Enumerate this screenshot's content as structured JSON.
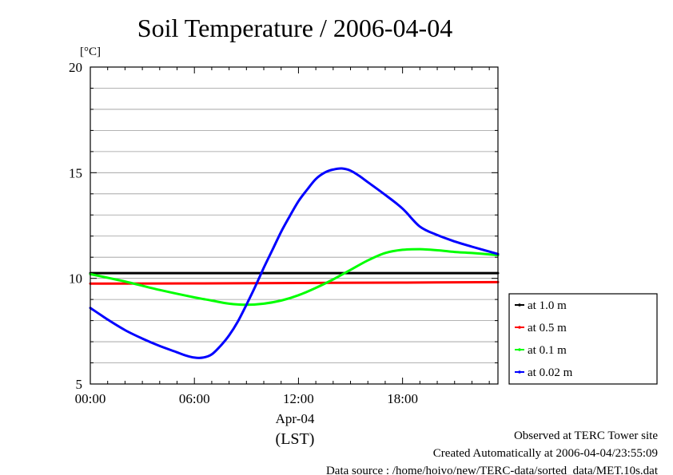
{
  "chart_data": {
    "type": "line",
    "title": "Soil Temperature / 2006-04-04",
    "ylabel": "[°C]",
    "xlabel_lines": [
      "Apr-04",
      "(LST)"
    ],
    "xlim": [
      0,
      23.5
    ],
    "ylim": [
      5,
      20
    ],
    "x_ticks": [
      0,
      6,
      12,
      18
    ],
    "x_tick_labels": [
      "00:00",
      "06:00",
      "12:00",
      "18:00"
    ],
    "y_ticks": [
      5,
      10,
      15,
      20
    ],
    "y_tick_labels": [
      "5",
      "10",
      "15",
      "20"
    ],
    "grid": true,
    "legend_position": "right",
    "series": [
      {
        "name": "at 1.0 m",
        "color": "#000000",
        "x": [
          0,
          23.5
        ],
        "y": [
          10.25,
          10.25
        ]
      },
      {
        "name": "at 0.5 m",
        "color": "#ff0000",
        "x": [
          0,
          6,
          12,
          18,
          23.5
        ],
        "y": [
          9.75,
          9.76,
          9.78,
          9.8,
          9.82
        ]
      },
      {
        "name": "at 0.1 m",
        "color": "#00ff00",
        "x": [
          0,
          2,
          4,
          6,
          7,
          8,
          9,
          10,
          11,
          12,
          13,
          14,
          15,
          16,
          17,
          18,
          19,
          20,
          21,
          22,
          23.5
        ],
        "y": [
          10.2,
          9.85,
          9.45,
          9.1,
          8.95,
          8.8,
          8.75,
          8.8,
          8.95,
          9.2,
          9.55,
          9.95,
          10.4,
          10.85,
          11.2,
          11.35,
          11.38,
          11.33,
          11.25,
          11.2,
          11.1
        ]
      },
      {
        "name": "at 0.02 m",
        "color": "#0000ff",
        "x": [
          0,
          1,
          2,
          3,
          4,
          5,
          5.5,
          6,
          6.5,
          7,
          7.5,
          8,
          8.5,
          9,
          9.5,
          10,
          10.5,
          11,
          11.5,
          12,
          12.5,
          13,
          13.5,
          14,
          14.5,
          15,
          15.5,
          16,
          17,
          18,
          19,
          20,
          21,
          22,
          23.5
        ],
        "y": [
          8.6,
          8.05,
          7.55,
          7.15,
          6.8,
          6.5,
          6.35,
          6.25,
          6.25,
          6.4,
          6.8,
          7.3,
          7.95,
          8.75,
          9.6,
          10.5,
          11.35,
          12.2,
          12.95,
          13.65,
          14.2,
          14.7,
          15.0,
          15.15,
          15.2,
          15.1,
          14.85,
          14.55,
          13.95,
          13.3,
          12.45,
          12.05,
          11.75,
          11.5,
          11.15
        ]
      }
    ],
    "footer": [
      "Observed at TERC Tower site",
      "Created Automatically at 2006-04-04/23:55:09",
      "Data source : /home/hoivo/new/TERC-data/sorted_data/MET.10s.dat"
    ]
  }
}
